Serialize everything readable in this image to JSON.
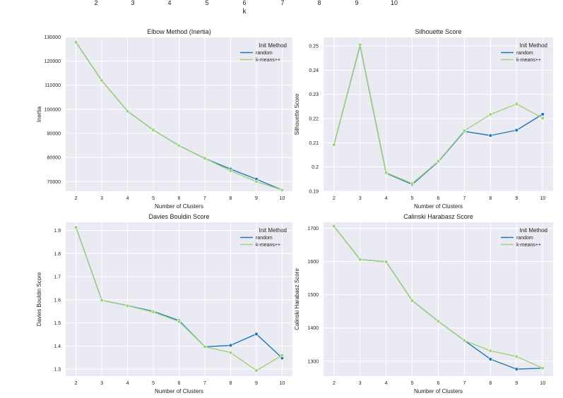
{
  "top_axis": {
    "ticks": [
      "2",
      "3",
      "4",
      "5",
      "6",
      "7",
      "8",
      "9",
      "10"
    ],
    "label": "k"
  },
  "colors": {
    "panel_bg": "#eaeaf2",
    "grid": "#ffffff",
    "random": "#1f77b4",
    "kmeanspp": "#9fd27a"
  },
  "chart_data": [
    {
      "type": "line",
      "title": "Elbow Method (Inertia)",
      "xlabel": "Number of Clusters",
      "ylabel": "Inertia",
      "x": [
        2,
        3,
        4,
        5,
        6,
        7,
        8,
        9,
        10
      ],
      "xlim": [
        1.6,
        10.4
      ],
      "ylim": [
        66000,
        129800
      ],
      "yticks": [
        70000,
        80000,
        90000,
        100000,
        110000,
        120000,
        130000
      ],
      "legend_title": "Init Method",
      "legend_position": "top-right",
      "series": [
        {
          "name": "random",
          "values": [
            127800,
            111900,
            99200,
            91400,
            84900,
            79600,
            75200,
            71000,
            66500
          ]
        },
        {
          "name": "k-means++",
          "values": [
            127800,
            111900,
            99200,
            91400,
            84900,
            79600,
            74500,
            70000,
            66500
          ]
        }
      ]
    },
    {
      "type": "line",
      "title": "Silhouette Score",
      "xlabel": "Number of Clusters",
      "ylabel": "Silhouette Score",
      "x": [
        2,
        3,
        4,
        5,
        6,
        7,
        8,
        9,
        10
      ],
      "xlim": [
        1.6,
        10.4
      ],
      "ylim": [
        0.19,
        0.2535
      ],
      "yticks": [
        0.19,
        0.2,
        0.21,
        0.22,
        0.23,
        0.24,
        0.25
      ],
      "legend_title": "Init Method",
      "legend_position": "top-right",
      "series": [
        {
          "name": "random",
          "values": [
            0.2092,
            0.2502,
            0.1975,
            0.1928,
            0.2022,
            0.2147,
            0.213,
            0.2152,
            0.2218
          ]
        },
        {
          "name": "k-means++",
          "values": [
            0.2092,
            0.2505,
            0.1977,
            0.1932,
            0.2024,
            0.215,
            0.2217,
            0.226,
            0.2202
          ]
        }
      ]
    },
    {
      "type": "line",
      "title": "Davies Bouldin Score",
      "xlabel": "Number of Clusters",
      "ylabel": "Davies Bouldin Score",
      "x": [
        2,
        3,
        4,
        5,
        6,
        7,
        8,
        9,
        10
      ],
      "xlim": [
        1.6,
        10.4
      ],
      "ylim": [
        1.27,
        1.935
      ],
      "yticks": [
        1.3,
        1.4,
        1.5,
        1.6,
        1.7,
        1.8,
        1.9
      ],
      "legend_title": "Init Method",
      "legend_position": "top-right",
      "series": [
        {
          "name": "random",
          "values": [
            1.913,
            1.598,
            1.575,
            1.55,
            1.51,
            1.397,
            1.403,
            1.452,
            1.348
          ]
        },
        {
          "name": "k-means++",
          "values": [
            1.913,
            1.598,
            1.574,
            1.547,
            1.506,
            1.397,
            1.372,
            1.294,
            1.36
          ]
        }
      ]
    },
    {
      "type": "line",
      "title": "Calinski Harabasz Score",
      "xlabel": "Number of Clusters",
      "ylabel": "Calinski Harabasz Score",
      "x": [
        2,
        3,
        4,
        5,
        6,
        7,
        8,
        9,
        10
      ],
      "xlim": [
        1.6,
        10.4
      ],
      "ylim": [
        1255,
        1718
      ],
      "yticks": [
        1300,
        1400,
        1500,
        1600,
        1700
      ],
      "legend_title": "Init Method",
      "legend_position": "top-right",
      "series": [
        {
          "name": "random",
          "values": [
            1706,
            1606,
            1599,
            1482,
            1420,
            1362,
            1306,
            1276,
            1279
          ]
        },
        {
          "name": "k-means++",
          "values": [
            1706,
            1606,
            1599,
            1482,
            1420,
            1362,
            1331,
            1314,
            1279
          ]
        }
      ]
    }
  ]
}
